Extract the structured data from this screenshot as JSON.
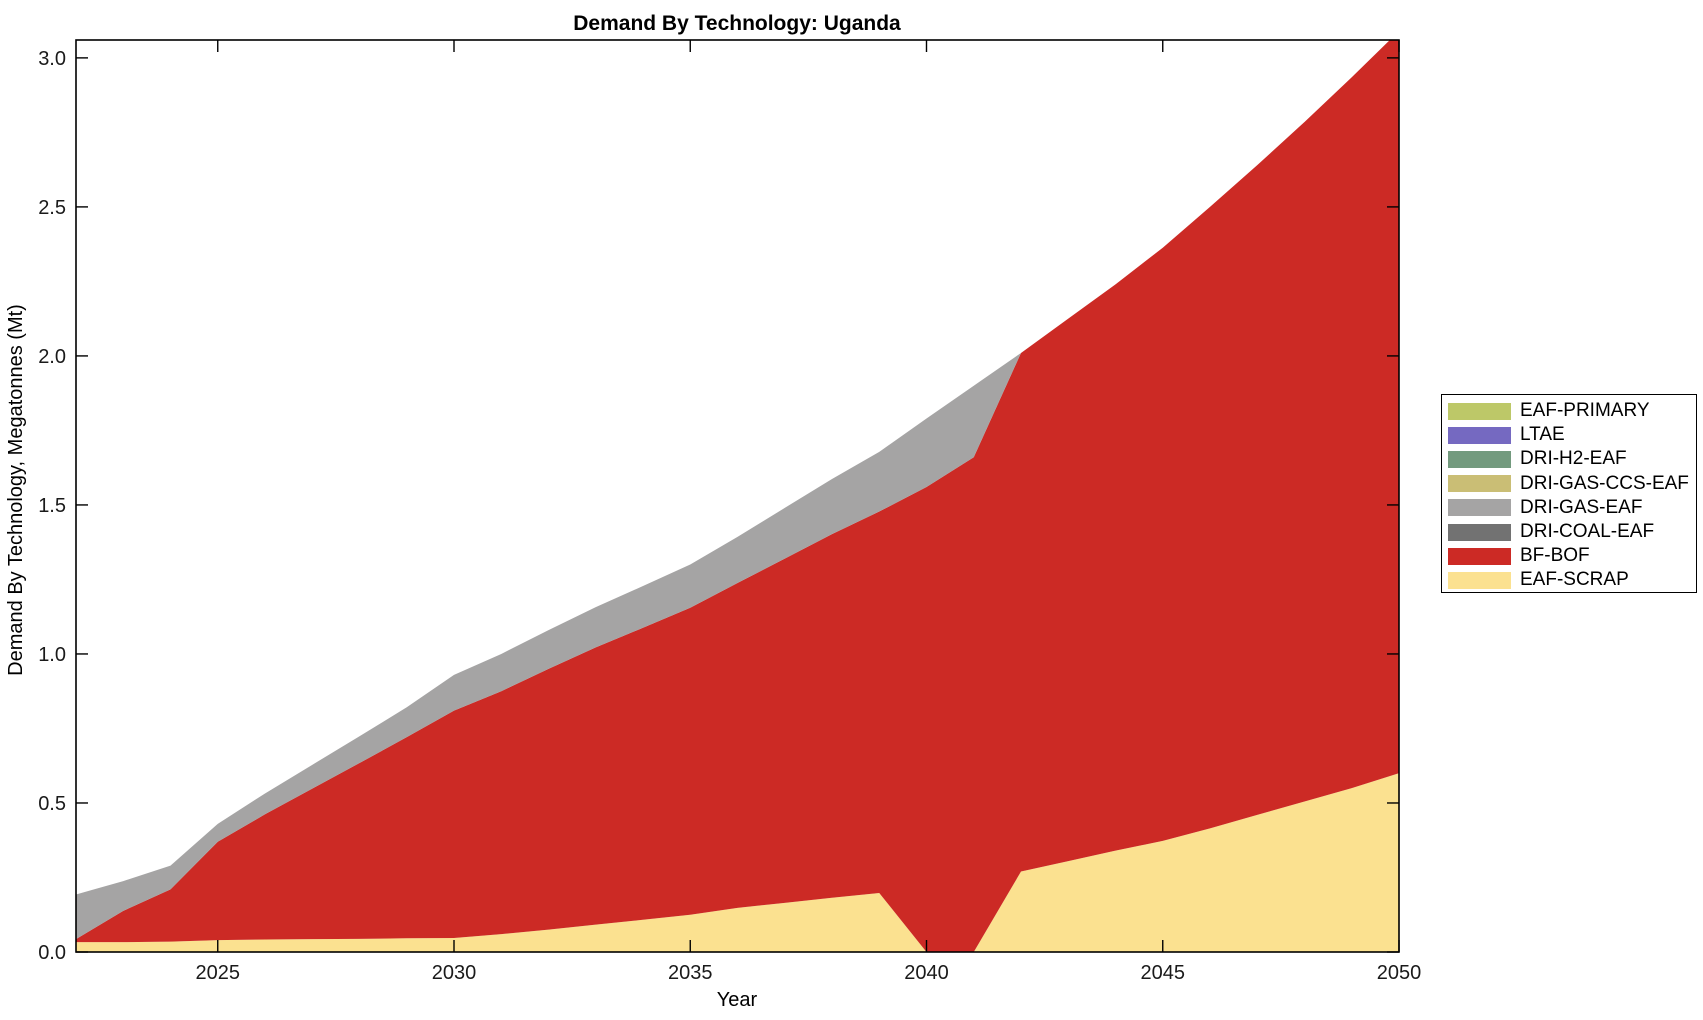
{
  "chart_data": {
    "type": "area",
    "stacked": true,
    "title": "Demand By Technology: Uganda",
    "xlabel": "Year",
    "ylabel": "Demand By Technology, Megatonnes (Mt)",
    "legend_position": "right-outside",
    "grid": false,
    "xlim": [
      2022,
      2050
    ],
    "ylim": [
      0,
      3.06
    ],
    "x_ticks": [
      2025,
      2030,
      2035,
      2040,
      2045,
      2050
    ],
    "y_ticks": [
      0.0,
      0.5,
      1.0,
      1.5,
      2.0,
      2.5,
      3.0
    ],
    "x": [
      2022,
      2023,
      2024,
      2025,
      2026,
      2027,
      2028,
      2029,
      2030,
      2031,
      2032,
      2033,
      2034,
      2035,
      2036,
      2037,
      2038,
      2039,
      2040,
      2041,
      2042,
      2043,
      2044,
      2045,
      2046,
      2047,
      2048,
      2049,
      2050
    ],
    "series": [
      {
        "name": "EAF-SCRAP",
        "color": "#fbe190",
        "values": [
          0.033,
          0.033,
          0.035,
          0.04,
          0.042,
          0.043,
          0.044,
          0.046,
          0.047,
          0.06,
          0.075,
          0.092,
          0.108,
          0.125,
          0.148,
          0.165,
          0.182,
          0.198,
          0.0,
          0.0,
          0.27,
          0.305,
          0.34,
          0.373,
          0.415,
          0.46,
          0.505,
          0.55,
          0.6
        ]
      },
      {
        "name": "BF-BOF",
        "color": "#cc2a25",
        "values": [
          0.01,
          0.105,
          0.175,
          0.33,
          0.42,
          0.505,
          0.59,
          0.675,
          0.763,
          0.815,
          0.875,
          0.93,
          0.98,
          1.03,
          1.09,
          1.155,
          1.22,
          1.28,
          1.56,
          1.66,
          1.74,
          1.82,
          1.9,
          1.99,
          2.085,
          2.18,
          2.28,
          2.385,
          2.49
        ]
      },
      {
        "name": "DRI-COAL-EAF",
        "color": "#727272",
        "values": [
          0,
          0,
          0,
          0,
          0,
          0,
          0,
          0,
          0,
          0,
          0,
          0,
          0,
          0,
          0,
          0,
          0,
          0,
          0,
          0,
          0,
          0,
          0,
          0,
          0,
          0,
          0,
          0,
          0
        ]
      },
      {
        "name": "DRI-GAS-EAF",
        "color": "#a5a4a4",
        "values": [
          0.15,
          0.1,
          0.08,
          0.06,
          0.07,
          0.08,
          0.09,
          0.1,
          0.12,
          0.125,
          0.13,
          0.135,
          0.14,
          0.145,
          0.155,
          0.17,
          0.185,
          0.2,
          0.23,
          0.24,
          0.0,
          0.0,
          0.0,
          0.0,
          0.0,
          0.0,
          0.0,
          0.0,
          0.0
        ]
      },
      {
        "name": "DRI-GAS-CCS-EAF",
        "color": "#cabe75",
        "values": [
          0,
          0,
          0,
          0,
          0,
          0,
          0,
          0,
          0,
          0,
          0,
          0,
          0,
          0,
          0,
          0,
          0,
          0,
          0,
          0,
          0,
          0,
          0,
          0,
          0,
          0,
          0,
          0,
          0
        ]
      },
      {
        "name": "DRI-H2-EAF",
        "color": "#739a7e",
        "values": [
          0,
          0,
          0,
          0,
          0,
          0,
          0,
          0,
          0,
          0,
          0,
          0,
          0,
          0,
          0,
          0,
          0,
          0,
          0,
          0,
          0,
          0,
          0,
          0,
          0,
          0,
          0,
          0,
          0
        ]
      },
      {
        "name": "LTAE",
        "color": "#7569c1",
        "values": [
          0,
          0,
          0,
          0,
          0,
          0,
          0,
          0,
          0,
          0,
          0,
          0,
          0,
          0,
          0,
          0,
          0,
          0,
          0,
          0,
          0,
          0,
          0,
          0,
          0,
          0,
          0,
          0,
          0
        ]
      },
      {
        "name": "EAF-PRIMARY",
        "color": "#bdc868",
        "values": [
          0,
          0,
          0,
          0,
          0,
          0,
          0,
          0,
          0,
          0,
          0,
          0,
          0,
          0,
          0,
          0,
          0,
          0,
          0,
          0,
          0,
          0,
          0,
          0,
          0,
          0,
          0,
          0,
          0
        ]
      }
    ]
  }
}
